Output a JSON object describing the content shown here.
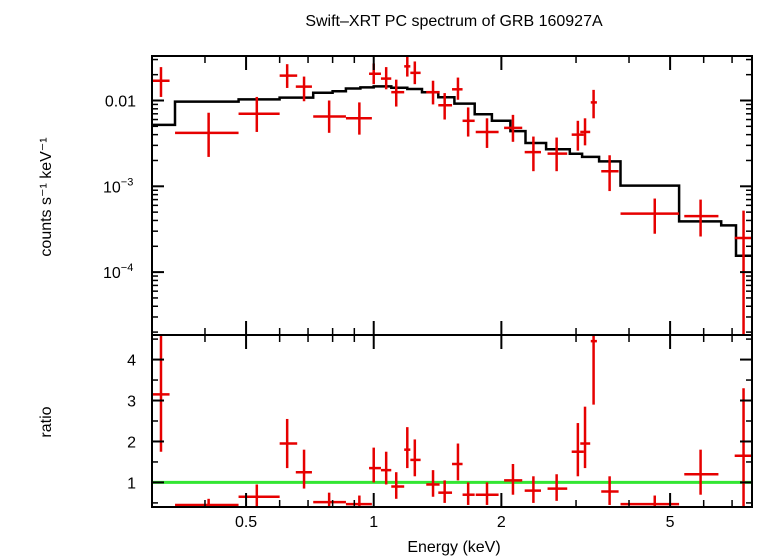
{
  "chart_data": [
    {
      "type": "scatter",
      "title": "Swift–XRT PC spectrum of GRB 160927A",
      "xlabel": "Energy (keV)",
      "ylabel": "counts s⁻¹ keV⁻¹",
      "xscale": "log",
      "yscale": "log",
      "xlim": [
        0.3,
        7.8
      ],
      "ylim": [
        1.85e-05,
        0.033
      ],
      "yticks": [
        {
          "value": 0.01,
          "label": "0.01"
        },
        {
          "value": 0.001,
          "label": "10",
          "exp": "−3"
        },
        {
          "value": 0.0001,
          "label": "10",
          "exp": "−4"
        }
      ],
      "data": [
        {
          "x": 0.315,
          "xlo": 0.3,
          "xhi": 0.33,
          "y": 0.017,
          "ylo": 0.011,
          "yhi": 0.0245
        },
        {
          "x": 0.408,
          "xlo": 0.34,
          "xhi": 0.48,
          "y": 0.0042,
          "ylo": 0.0022,
          "yhi": 0.0072
        },
        {
          "x": 0.53,
          "xlo": 0.48,
          "xhi": 0.6,
          "y": 0.007,
          "ylo": 0.0043,
          "yhi": 0.011
        },
        {
          "x": 0.625,
          "xlo": 0.6,
          "xhi": 0.66,
          "y": 0.0195,
          "ylo": 0.014,
          "yhi": 0.0265
        },
        {
          "x": 0.685,
          "xlo": 0.655,
          "xhi": 0.715,
          "y": 0.0145,
          "ylo": 0.0098,
          "yhi": 0.019
        },
        {
          "x": 0.785,
          "xlo": 0.72,
          "xhi": 0.86,
          "y": 0.0065,
          "ylo": 0.0042,
          "yhi": 0.01
        },
        {
          "x": 0.925,
          "xlo": 0.86,
          "xhi": 0.99,
          "y": 0.0062,
          "ylo": 0.004,
          "yhi": 0.0095
        },
        {
          "x": 1.0,
          "xlo": 0.975,
          "xhi": 1.04,
          "y": 0.0205,
          "ylo": 0.0155,
          "yhi": 0.027
        },
        {
          "x": 1.07,
          "xlo": 1.04,
          "xhi": 1.1,
          "y": 0.018,
          "ylo": 0.0135,
          "yhi": 0.0245
        },
        {
          "x": 1.13,
          "xlo": 1.1,
          "xhi": 1.18,
          "y": 0.0125,
          "ylo": 0.0085,
          "yhi": 0.0175
        },
        {
          "x": 1.2,
          "xlo": 1.18,
          "xhi": 1.22,
          "y": 0.025,
          "ylo": 0.019,
          "yhi": 0.033
        },
        {
          "x": 1.25,
          "xlo": 1.22,
          "xhi": 1.29,
          "y": 0.021,
          "ylo": 0.0155,
          "yhi": 0.0285
        },
        {
          "x": 1.38,
          "xlo": 1.33,
          "xhi": 1.43,
          "y": 0.0125,
          "ylo": 0.009,
          "yhi": 0.017
        },
        {
          "x": 1.47,
          "xlo": 1.42,
          "xhi": 1.53,
          "y": 0.0088,
          "ylo": 0.006,
          "yhi": 0.0122
        },
        {
          "x": 1.58,
          "xlo": 1.53,
          "xhi": 1.62,
          "y": 0.0135,
          "ylo": 0.0102,
          "yhi": 0.0185
        },
        {
          "x": 1.67,
          "xlo": 1.62,
          "xhi": 1.73,
          "y": 0.0058,
          "ylo": 0.0038,
          "yhi": 0.0083
        },
        {
          "x": 1.85,
          "xlo": 1.74,
          "xhi": 1.97,
          "y": 0.0043,
          "ylo": 0.0028,
          "yhi": 0.0062
        },
        {
          "x": 2.13,
          "xlo": 2.03,
          "xhi": 2.24,
          "y": 0.0048,
          "ylo": 0.0033,
          "yhi": 0.0068
        },
        {
          "x": 2.38,
          "xlo": 2.27,
          "xhi": 2.48,
          "y": 0.0025,
          "ylo": 0.0015,
          "yhi": 0.0038
        },
        {
          "x": 2.7,
          "xlo": 2.57,
          "xhi": 2.86,
          "y": 0.0024,
          "ylo": 0.0015,
          "yhi": 0.0037
        },
        {
          "x": 3.03,
          "xlo": 2.93,
          "xhi": 3.13,
          "y": 0.004,
          "ylo": 0.0026,
          "yhi": 0.0058
        },
        {
          "x": 3.15,
          "xlo": 3.07,
          "xhi": 3.24,
          "y": 0.0043,
          "ylo": 0.003,
          "yhi": 0.0062
        },
        {
          "x": 3.3,
          "xlo": 3.25,
          "xhi": 3.36,
          "y": 0.0095,
          "ylo": 0.0062,
          "yhi": 0.0133
        },
        {
          "x": 3.6,
          "xlo": 3.44,
          "xhi": 3.78,
          "y": 0.0015,
          "ylo": 0.00088,
          "yhi": 0.0023
        },
        {
          "x": 4.6,
          "xlo": 3.82,
          "xhi": 5.25,
          "y": 0.00048,
          "ylo": 0.00028,
          "yhi": 0.00072
        },
        {
          "x": 5.9,
          "xlo": 5.4,
          "xhi": 6.5,
          "y": 0.00045,
          "ylo": 0.00026,
          "yhi": 0.0007
        },
        {
          "x": 7.45,
          "xlo": 7.1,
          "xhi": 7.8,
          "y": 0.00025,
          "ylo": 1.85e-05,
          "yhi": 0.00052
        }
      ],
      "model": [
        [
          0.3,
          0.0052
        ],
        [
          0.34,
          0.0052
        ],
        [
          0.34,
          0.0097
        ],
        [
          0.48,
          0.0097
        ],
        [
          0.48,
          0.0103
        ],
        [
          0.6,
          0.0103
        ],
        [
          0.6,
          0.0108
        ],
        [
          0.72,
          0.0108
        ],
        [
          0.72,
          0.0123
        ],
        [
          0.8,
          0.0123
        ],
        [
          0.8,
          0.0128
        ],
        [
          0.86,
          0.0128
        ],
        [
          0.86,
          0.0138
        ],
        [
          0.93,
          0.0138
        ],
        [
          0.93,
          0.0142
        ],
        [
          1.0,
          0.0142
        ],
        [
          1.0,
          0.0146
        ],
        [
          1.1,
          0.0146
        ],
        [
          1.1,
          0.0141
        ],
        [
          1.2,
          0.0141
        ],
        [
          1.2,
          0.0136
        ],
        [
          1.3,
          0.0136
        ],
        [
          1.3,
          0.0125
        ],
        [
          1.42,
          0.0125
        ],
        [
          1.42,
          0.0109
        ],
        [
          1.55,
          0.0109
        ],
        [
          1.55,
          0.0092
        ],
        [
          1.73,
          0.0092
        ],
        [
          1.73,
          0.0069
        ],
        [
          1.9,
          0.0069
        ],
        [
          1.9,
          0.0058
        ],
        [
          2.1,
          0.0058
        ],
        [
          2.1,
          0.0044
        ],
        [
          2.28,
          0.0044
        ],
        [
          2.28,
          0.0032
        ],
        [
          2.55,
          0.0032
        ],
        [
          2.55,
          0.0027
        ],
        [
          2.9,
          0.0027
        ],
        [
          2.9,
          0.0024
        ],
        [
          3.1,
          0.0024
        ],
        [
          3.1,
          0.0022
        ],
        [
          3.4,
          0.0022
        ],
        [
          3.4,
          0.00195
        ],
        [
          3.82,
          0.00195
        ],
        [
          3.82,
          0.00102
        ],
        [
          5.25,
          0.00102
        ],
        [
          5.25,
          0.00039
        ],
        [
          6.6,
          0.00039
        ],
        [
          6.6,
          0.00035
        ],
        [
          7.15,
          0.00035
        ],
        [
          7.15,
          0.000155
        ],
        [
          7.8,
          0.000155
        ]
      ]
    },
    {
      "type": "scatter",
      "xlabel": "Energy (keV)",
      "ylabel": "ratio",
      "xscale": "log",
      "xlim": [
        0.3,
        7.8
      ],
      "ylim": [
        0.4,
        4.6
      ],
      "xticks": [
        {
          "value": 0.5,
          "label": "0.5"
        },
        {
          "value": 1,
          "label": "1"
        },
        {
          "value": 2,
          "label": "2"
        },
        {
          "value": 5,
          "label": "5"
        }
      ],
      "yticks": [
        {
          "value": 1,
          "label": "1"
        },
        {
          "value": 2,
          "label": "2"
        },
        {
          "value": 3,
          "label": "3"
        },
        {
          "value": 4,
          "label": "4"
        }
      ],
      "reference_line": {
        "y": 1,
        "color": "#33e633"
      },
      "data": [
        {
          "x": 0.315,
          "xlo": 0.3,
          "xhi": 0.33,
          "y": 3.15,
          "ylo": 1.75,
          "yhi": 4.6
        },
        {
          "x": 0.408,
          "xlo": 0.34,
          "xhi": 0.48,
          "y": 0.45,
          "ylo": 0.4,
          "yhi": 0.6
        },
        {
          "x": 0.53,
          "xlo": 0.48,
          "xhi": 0.6,
          "y": 0.65,
          "ylo": 0.4,
          "yhi": 0.95
        },
        {
          "x": 0.625,
          "xlo": 0.6,
          "xhi": 0.66,
          "y": 1.95,
          "ylo": 1.35,
          "yhi": 2.55
        },
        {
          "x": 0.685,
          "xlo": 0.655,
          "xhi": 0.715,
          "y": 1.25,
          "ylo": 0.85,
          "yhi": 1.8
        },
        {
          "x": 0.785,
          "xlo": 0.72,
          "xhi": 0.86,
          "y": 0.52,
          "ylo": 0.4,
          "yhi": 0.75
        },
        {
          "x": 0.925,
          "xlo": 0.86,
          "xhi": 0.99,
          "y": 0.47,
          "ylo": 0.4,
          "yhi": 0.68
        },
        {
          "x": 1.0,
          "xlo": 0.975,
          "xhi": 1.04,
          "y": 1.35,
          "ylo": 1.0,
          "yhi": 1.85
        },
        {
          "x": 1.07,
          "xlo": 1.04,
          "xhi": 1.1,
          "y": 1.3,
          "ylo": 0.95,
          "yhi": 1.75
        },
        {
          "x": 1.13,
          "xlo": 1.1,
          "xhi": 1.18,
          "y": 0.9,
          "ylo": 0.6,
          "yhi": 1.25
        },
        {
          "x": 1.2,
          "xlo": 1.18,
          "xhi": 1.22,
          "y": 1.8,
          "ylo": 1.35,
          "yhi": 2.35
        },
        {
          "x": 1.25,
          "xlo": 1.22,
          "xhi": 1.29,
          "y": 1.55,
          "ylo": 1.15,
          "yhi": 2.05
        },
        {
          "x": 1.38,
          "xlo": 1.33,
          "xhi": 1.43,
          "y": 0.95,
          "ylo": 0.65,
          "yhi": 1.3
        },
        {
          "x": 1.47,
          "xlo": 1.42,
          "xhi": 1.53,
          "y": 0.75,
          "ylo": 0.5,
          "yhi": 1.05
        },
        {
          "x": 1.58,
          "xlo": 1.53,
          "xhi": 1.62,
          "y": 1.45,
          "ylo": 1.05,
          "yhi": 1.95
        },
        {
          "x": 1.67,
          "xlo": 1.62,
          "xhi": 1.73,
          "y": 0.7,
          "ylo": 0.45,
          "yhi": 1.0
        },
        {
          "x": 1.85,
          "xlo": 1.74,
          "xhi": 1.97,
          "y": 0.7,
          "ylo": 0.45,
          "yhi": 1.0
        },
        {
          "x": 2.13,
          "xlo": 2.03,
          "xhi": 2.24,
          "y": 1.05,
          "ylo": 0.7,
          "yhi": 1.45
        },
        {
          "x": 2.38,
          "xlo": 2.27,
          "xhi": 2.48,
          "y": 0.8,
          "ylo": 0.5,
          "yhi": 1.15
        },
        {
          "x": 2.7,
          "xlo": 2.57,
          "xhi": 2.86,
          "y": 0.85,
          "ylo": 0.55,
          "yhi": 1.2
        },
        {
          "x": 3.03,
          "xlo": 2.93,
          "xhi": 3.13,
          "y": 1.75,
          "ylo": 1.15,
          "yhi": 2.45
        },
        {
          "x": 3.15,
          "xlo": 3.07,
          "xhi": 3.24,
          "y": 1.95,
          "ylo": 1.35,
          "yhi": 2.85
        },
        {
          "x": 3.3,
          "xlo": 3.25,
          "xhi": 3.36,
          "y": 4.45,
          "ylo": 2.9,
          "yhi": 4.6
        },
        {
          "x": 3.6,
          "xlo": 3.44,
          "xhi": 3.78,
          "y": 0.78,
          "ylo": 0.45,
          "yhi": 1.15
        },
        {
          "x": 4.6,
          "xlo": 3.82,
          "xhi": 5.25,
          "y": 0.47,
          "ylo": 0.4,
          "yhi": 0.68
        },
        {
          "x": 5.9,
          "xlo": 5.4,
          "xhi": 6.5,
          "y": 1.2,
          "ylo": 0.7,
          "yhi": 1.8
        },
        {
          "x": 7.45,
          "xlo": 7.1,
          "xhi": 7.8,
          "y": 1.65,
          "ylo": 0.4,
          "yhi": 3.3
        }
      ]
    }
  ]
}
